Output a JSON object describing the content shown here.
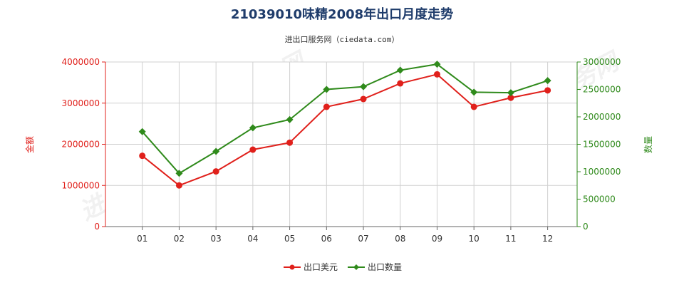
{
  "chart_data": {
    "type": "line",
    "title": "21039010味精2008年出口月度走势",
    "subtitle": "进出口服务网（ciedata.com）",
    "categories": [
      "01",
      "02",
      "03",
      "04",
      "05",
      "06",
      "07",
      "08",
      "09",
      "10",
      "11",
      "12"
    ],
    "y_left": {
      "label": "金额",
      "ylim": [
        0,
        4000000
      ],
      "ticks": [
        "0",
        "1000000",
        "2000000",
        "3000000",
        "4000000"
      ],
      "tick_values": [
        0,
        1000000,
        2000000,
        3000000,
        4000000
      ]
    },
    "y_right": {
      "label": "数量",
      "ylim": [
        0,
        3000000
      ],
      "ticks": [
        "0",
        "500000",
        "1000000",
        "1500000",
        "2000000",
        "2500000",
        "3000000"
      ],
      "tick_values": [
        0,
        500000,
        1000000,
        1500000,
        2000000,
        2500000,
        3000000
      ]
    },
    "series": [
      {
        "name": "出口美元",
        "axis": "left",
        "color": "#e0201b",
        "marker": "circle",
        "values": [
          1720000,
          1000000,
          1340000,
          1870000,
          2040000,
          2910000,
          3100000,
          3480000,
          3700000,
          2910000,
          3130000,
          3310000
        ]
      },
      {
        "name": "出口数量",
        "axis": "right",
        "color": "#2f8a1b",
        "marker": "diamond",
        "values": [
          1730000,
          970000,
          1370000,
          1800000,
          1950000,
          2500000,
          2550000,
          2850000,
          2960000,
          2450000,
          2440000,
          2660000
        ]
      }
    ],
    "grid": true,
    "legend_position": "bottom",
    "watermark": "进出口服务网"
  }
}
